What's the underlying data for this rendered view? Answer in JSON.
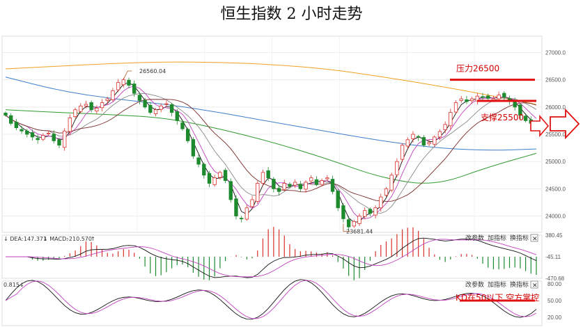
{
  "title": "恒生指数 2 小时走势",
  "chart_data": [
    {
      "type": "candlestick",
      "title": "恒生指数 2 小时走势",
      "ylim": [
        23700,
        27300
      ],
      "y_ticks": [
        "27000.0",
        "26500.0",
        "26000.0",
        "25500.0",
        "25000.0",
        "24500.0",
        "24000.0"
      ],
      "y_tick_values": [
        27000,
        26500,
        26000,
        25500,
        25000,
        24500,
        24000
      ],
      "annotations": {
        "high_label": "26560.04",
        "high_value": 26560,
        "low_label": "23681.44",
        "low_value": 23681,
        "resistance_label": "压力26500",
        "resistance_value": 26500,
        "support_label": "支撑25500",
        "support_value": 25500
      },
      "close": [
        25850,
        25700,
        25620,
        25560,
        25500,
        25450,
        25400,
        25480,
        25520,
        25380,
        25300,
        25560,
        25800,
        25950,
        26020,
        26050,
        25950,
        25980,
        26080,
        26150,
        26300,
        26450,
        26500,
        26400,
        26250,
        26120,
        26000,
        25900,
        25950,
        26020,
        26060,
        25900,
        25750,
        25600,
        25380,
        25100,
        24950,
        24750,
        24600,
        24700,
        24800,
        24650,
        24300,
        24000,
        23950,
        24150,
        24300,
        24600,
        24800,
        24700,
        24500,
        24450,
        24600,
        24550,
        24620,
        24500,
        24620,
        24700,
        24580,
        24650,
        24700,
        24450,
        24150,
        23950,
        23800,
        23900,
        24000,
        24100,
        24050,
        24150,
        24350,
        24500,
        24750,
        25000,
        25300,
        25400,
        25500,
        25450,
        25300,
        25350,
        25450,
        25550,
        25680,
        25900,
        26080,
        26150,
        26100,
        26150,
        26200,
        26180,
        26160,
        26150,
        26220,
        26180,
        26100,
        26000,
        25850,
        25750,
        25700,
        25650
      ],
      "ma": [
        {
          "color": "#f0a020",
          "values": [
            [
              0,
              26700
            ],
            [
              10,
              26750
            ],
            [
              20,
              26800
            ],
            [
              30,
              26830
            ],
            [
              40,
              26820
            ],
            [
              50,
              26780
            ],
            [
              60,
              26700
            ],
            [
              70,
              26560
            ],
            [
              80,
              26400
            ],
            [
              90,
              26220
            ],
            [
              99,
              26050
            ]
          ]
        },
        {
          "color": "#3d7fc9",
          "values": [
            [
              0,
              26550
            ],
            [
              10,
              26300
            ],
            [
              20,
              26150
            ],
            [
              30,
              26050
            ],
            [
              40,
              25900
            ],
            [
              50,
              25720
            ],
            [
              60,
              25550
            ],
            [
              70,
              25380
            ],
            [
              80,
              25250
            ],
            [
              90,
              25200
            ],
            [
              99,
              25230
            ]
          ]
        },
        {
          "color": "#2f9a2f",
          "values": [
            [
              0,
              25950
            ],
            [
              10,
              25900
            ],
            [
              20,
              25860
            ],
            [
              30,
              25800
            ],
            [
              40,
              25600
            ],
            [
              50,
              25350
            ],
            [
              60,
              25050
            ],
            [
              70,
              24700
            ],
            [
              80,
              24550
            ],
            [
              90,
              24900
            ],
            [
              99,
              25150
            ]
          ]
        }
      ]
    },
    {
      "type": "macd",
      "dea": "147.371",
      "macd": "-210.570",
      "y_ticks": [
        "380.45",
        "-45.11",
        "-470.68"
      ],
      "y_tick_values": [
        380.45,
        -45.11,
        -470.68
      ]
    },
    {
      "type": "kd",
      "k_value": "0.815",
      "y_ticks": [
        "80.00",
        "50.00",
        "20.00"
      ],
      "y_tick_values": [
        80,
        50,
        20
      ],
      "annotation": "KD在50以下 空方掌控",
      "line_value": 50
    }
  ],
  "toolbar": {
    "macd_change": "改参数",
    "macd_add": "加指标",
    "macd_swap": "换指标",
    "macd_close": "✕",
    "kd_change": "改参数",
    "kd_add": "加指标",
    "kd_swap": "换指标",
    "kd_close": "✕"
  },
  "colors": {
    "up": "#d9302a",
    "down": "#1e8a2e",
    "ann": "#d40000"
  }
}
